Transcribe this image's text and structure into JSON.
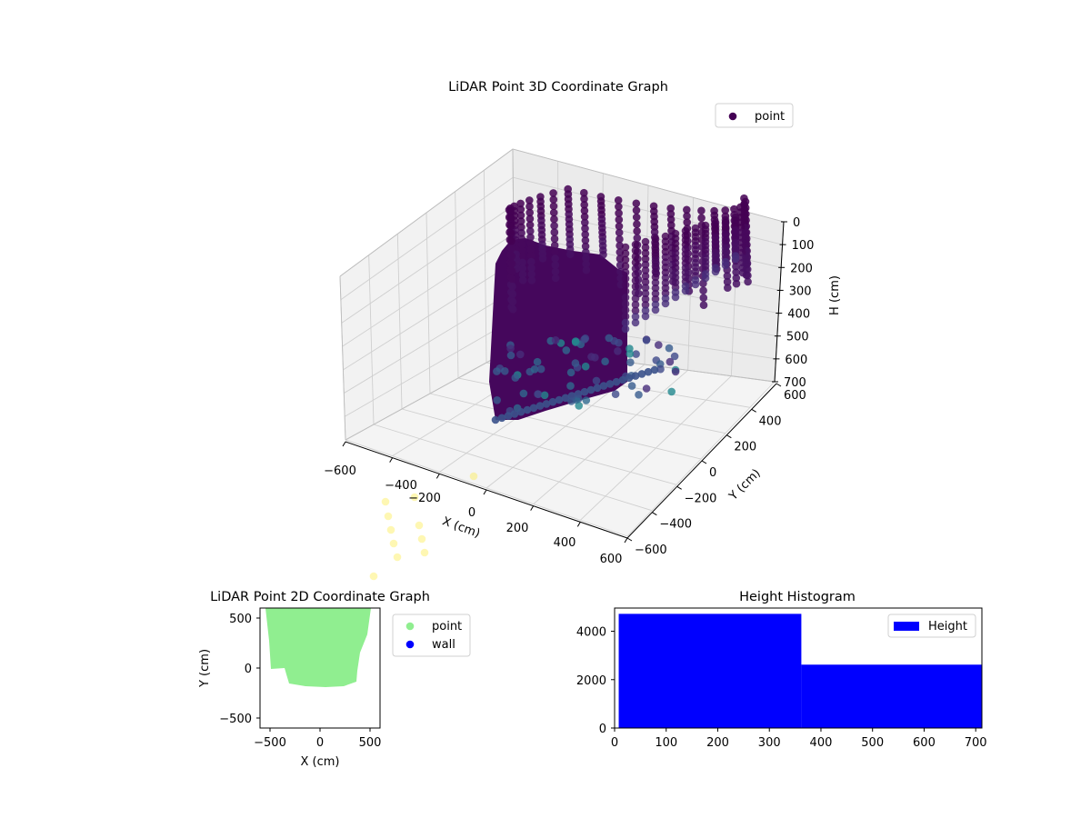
{
  "figure": {
    "background": "#ffffff"
  },
  "chart_data": [
    {
      "type": "scatter",
      "title": "LiDAR Point 3D Coordinate Graph",
      "xlabel": "X (cm)",
      "ylabel": "Y (cm)",
      "zlabel": "H (cm)",
      "x_ticks": [
        "−600",
        "−400",
        "−200",
        "0",
        "200",
        "400",
        "600"
      ],
      "y_ticks": [
        "−600",
        "−400",
        "−200",
        "0",
        "200",
        "400",
        "600"
      ],
      "z_ticks": [
        "0",
        "100",
        "200",
        "300",
        "400",
        "500",
        "600",
        "700"
      ],
      "xlim": [
        -600,
        600
      ],
      "ylim": [
        -600,
        600
      ],
      "zlim": [
        0,
        700
      ],
      "z_inverted": true,
      "grid": true,
      "colormap": "viridis",
      "legend": {
        "placement": "upper-right",
        "entries": [
          {
            "name": "point",
            "color": "#440154"
          }
        ]
      },
      "outlier_color": "#fde725"
    },
    {
      "type": "scatter",
      "title": "LiDAR Point 2D Coordinate Graph",
      "xlabel": "X (cm)",
      "ylabel": "Y (cm)",
      "x_ticks": [
        "−500",
        "0",
        "500"
      ],
      "y_ticks": [
        "500",
        "0",
        "−500"
      ],
      "xlim": [
        -600,
        600
      ],
      "ylim": [
        -600,
        600
      ],
      "legend": {
        "placement": "outside-right",
        "entries": [
          {
            "name": "point",
            "color": "#90ee90"
          },
          {
            "name": "wall",
            "color": "#0000ff"
          }
        ]
      }
    },
    {
      "type": "bar",
      "title": "Height Histogram",
      "x_ticks": [
        "0",
        "100",
        "200",
        "300",
        "400",
        "500",
        "600",
        "700"
      ],
      "y_ticks": [
        "0",
        "2000",
        "4000"
      ],
      "xlim": [
        0,
        712
      ],
      "ylim": [
        0,
        4960
      ],
      "bins": [
        {
          "start": 8,
          "end": 362,
          "count": 4720
        },
        {
          "start": 362,
          "end": 712,
          "count": 2620
        }
      ],
      "color": "#0000ff",
      "legend": {
        "placement": "upper-right",
        "entries": [
          {
            "name": "Height",
            "color": "#0000ff"
          }
        ]
      }
    }
  ]
}
